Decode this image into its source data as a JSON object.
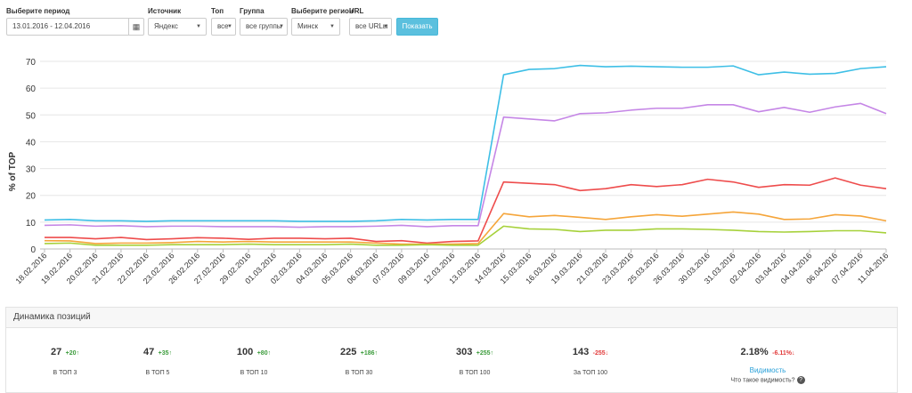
{
  "filters": {
    "period": {
      "label": "Выберите период",
      "value": "13.01.2016 - 12.04.2016"
    },
    "source": {
      "label": "Источник",
      "value": "Яндекс"
    },
    "top": {
      "label": "Топ",
      "value": "все"
    },
    "group": {
      "label": "Группа",
      "value": "все группы"
    },
    "region": {
      "label": "Выберите регион",
      "value": "Минск"
    },
    "url": {
      "label": "URL",
      "value": "все URLы"
    },
    "show_button": "Показать"
  },
  "chart_data": {
    "type": "line",
    "ylabel": "% of TOP",
    "ylim": [
      0,
      70
    ],
    "yticks": [
      0,
      10,
      20,
      30,
      40,
      50,
      60,
      70
    ],
    "grid": true,
    "x": [
      "18.02.2016",
      "19.02.2016",
      "20.02.2016",
      "21.02.2016",
      "22.02.2016",
      "23.02.2016",
      "26.02.2016",
      "27.02.2016",
      "29.02.2016",
      "01.03.2016",
      "02.03.2016",
      "04.03.2016",
      "05.03.2016",
      "06.03.2016",
      "07.03.2016",
      "09.03.2016",
      "12.03.2016",
      "13.03.2016",
      "14.03.2016",
      "15.03.2016",
      "16.03.2016",
      "19.03.2016",
      "21.03.2016",
      "23.03.2016",
      "25.03.2016",
      "26.03.2016",
      "30.03.2016",
      "31.03.2016",
      "02.04.2016",
      "03.04.2016",
      "04.04.2016",
      "06.04.2016",
      "07.04.2016",
      "11.04.2016"
    ],
    "series": [
      {
        "color": "#3ebfe6",
        "values": [
          10.8,
          11.0,
          10.5,
          10.5,
          10.3,
          10.5,
          10.5,
          10.5,
          10.5,
          10.5,
          10.3,
          10.3,
          10.3,
          10.5,
          11.0,
          10.8,
          11.0,
          11.0,
          65.0,
          67.0,
          67.3,
          68.5,
          68.0,
          68.2,
          68.0,
          67.8,
          67.8,
          68.3,
          65.0,
          66.0,
          65.2,
          65.5,
          67.3,
          68.0
        ]
      },
      {
        "color": "#c586e6",
        "values": [
          8.8,
          9.0,
          8.5,
          8.7,
          8.3,
          8.5,
          8.5,
          8.3,
          8.3,
          8.3,
          8.1,
          8.3,
          8.3,
          8.5,
          8.8,
          8.3,
          8.7,
          8.7,
          49.2,
          48.5,
          47.8,
          50.5,
          50.8,
          51.8,
          52.5,
          52.5,
          53.8,
          53.8,
          51.2,
          52.8,
          51.0,
          53.0,
          54.3,
          50.5
        ]
      },
      {
        "color": "#ee4c4c",
        "values": [
          4.3,
          4.3,
          3.8,
          4.3,
          3.5,
          3.8,
          4.2,
          4.0,
          3.6,
          4.0,
          4.0,
          3.8,
          4.0,
          2.8,
          3.1,
          2.2,
          2.8,
          3.0,
          25.0,
          24.5,
          24.0,
          21.8,
          22.5,
          24.0,
          23.3,
          24.0,
          26.0,
          25.0,
          23.0,
          24.0,
          23.8,
          26.5,
          23.8,
          22.5
        ]
      },
      {
        "color": "#f5a53a",
        "values": [
          3.1,
          3.0,
          2.0,
          2.2,
          2.2,
          2.4,
          2.8,
          2.6,
          2.8,
          2.6,
          2.6,
          2.6,
          2.6,
          2.2,
          1.8,
          1.8,
          1.8,
          2.0,
          13.2,
          12.0,
          12.5,
          11.8,
          11.0,
          12.0,
          12.8,
          12.2,
          13.0,
          13.8,
          13.0,
          11.0,
          11.2,
          12.8,
          12.3,
          10.5
        ]
      },
      {
        "color": "#a6d13a",
        "values": [
          2.0,
          2.2,
          1.4,
          1.4,
          1.4,
          1.6,
          1.6,
          1.6,
          1.8,
          1.6,
          1.6,
          1.6,
          1.8,
          1.4,
          1.4,
          1.6,
          1.4,
          1.4,
          8.5,
          7.5,
          7.3,
          6.5,
          7.0,
          7.0,
          7.5,
          7.5,
          7.3,
          7.0,
          6.5,
          6.3,
          6.5,
          6.8,
          6.8,
          6.0
        ]
      }
    ]
  },
  "dynamics": {
    "title": "Динамика позиций",
    "stats": [
      {
        "value": "27",
        "delta": "+20",
        "caption": "В ТОП 3",
        "trend": "up"
      },
      {
        "value": "47",
        "delta": "+35",
        "caption": "В ТОП 5",
        "trend": "up"
      },
      {
        "value": "100",
        "delta": "+80",
        "caption": "В ТОП 10",
        "trend": "up"
      },
      {
        "value": "225",
        "delta": "+186",
        "caption": "В ТОП 30",
        "trend": "up"
      },
      {
        "value": "303",
        "delta": "+255",
        "caption": "В ТОП 100",
        "trend": "up"
      },
      {
        "value": "143",
        "delta": "-255",
        "caption": "За ТОП 100",
        "trend": "down"
      }
    ],
    "visibility": {
      "value": "2.18%",
      "delta": "-6.11%",
      "link": "Видимость",
      "question": "Что такое видимость?"
    }
  },
  "colors": {
    "accent": "#5bc0de",
    "up": "#3c9c3c",
    "down": "#e23b3b"
  }
}
